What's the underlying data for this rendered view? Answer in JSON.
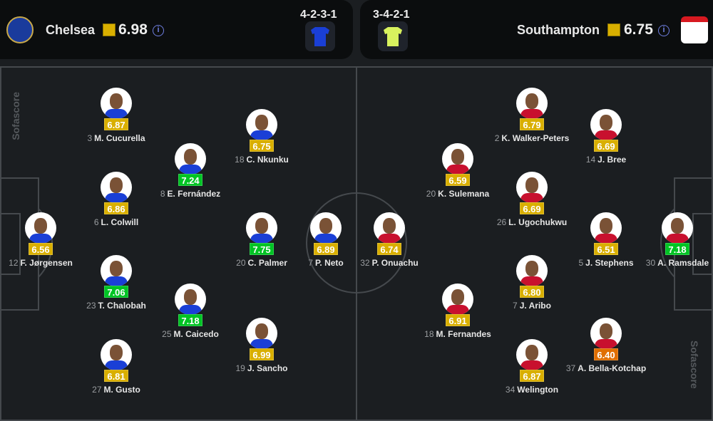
{
  "home": {
    "name": "Chelsea",
    "rating": "6.98",
    "formation": "4-2-3-1",
    "kit_color": "#1a3fd6",
    "crest": "chelsea-crest"
  },
  "away": {
    "name": "Southampton",
    "rating": "6.75",
    "formation": "3-4-2-1",
    "kit_color": "#d8f25e",
    "crest": "southampton-crest"
  },
  "watermark": "Sofascore",
  "rating_colors": {
    "yellow": "#d9af00",
    "green": "#00c424",
    "orange": "#e06e00"
  },
  "home_players": [
    {
      "number": "12",
      "name": "F. Jørgensen",
      "rating": "6.56",
      "color": "yellow"
    },
    {
      "number": "3",
      "name": "M. Cucurella",
      "rating": "6.87",
      "color": "yellow"
    },
    {
      "number": "6",
      "name": "L. Colwill",
      "rating": "6.86",
      "color": "yellow"
    },
    {
      "number": "23",
      "name": "T. Chalobah",
      "rating": "7.06",
      "color": "green"
    },
    {
      "number": "27",
      "name": "M. Gusto",
      "rating": "6.81",
      "color": "yellow"
    },
    {
      "number": "8",
      "name": "E. Fernández",
      "rating": "7.24",
      "color": "green"
    },
    {
      "number": "25",
      "name": "M. Caicedo",
      "rating": "7.18",
      "color": "green"
    },
    {
      "number": "18",
      "name": "C. Nkunku",
      "rating": "6.75",
      "color": "yellow"
    },
    {
      "number": "20",
      "name": "C. Palmer",
      "rating": "7.75",
      "color": "green"
    },
    {
      "number": "19",
      "name": "J. Sancho",
      "rating": "6.99",
      "color": "yellow"
    },
    {
      "number": "7",
      "name": "P. Neto",
      "rating": "6.89",
      "color": "yellow"
    }
  ],
  "away_players": [
    {
      "number": "32",
      "name": "P. Onuachu",
      "rating": "6.74",
      "color": "yellow"
    },
    {
      "number": "20",
      "name": "K. Sulemana",
      "rating": "6.59",
      "color": "yellow"
    },
    {
      "number": "18",
      "name": "M. Fernandes",
      "rating": "6.91",
      "color": "yellow"
    },
    {
      "number": "2",
      "name": "K. Walker-Peters",
      "rating": "6.79",
      "color": "yellow"
    },
    {
      "number": "26",
      "name": "L. Ugochukwu",
      "rating": "6.69",
      "color": "yellow"
    },
    {
      "number": "7",
      "name": "J. Aribo",
      "rating": "6.80",
      "color": "yellow"
    },
    {
      "number": "34",
      "name": "Welington",
      "rating": "6.87",
      "color": "yellow"
    },
    {
      "number": "14",
      "name": "J. Bree",
      "rating": "6.69",
      "color": "yellow"
    },
    {
      "number": "5",
      "name": "J. Stephens",
      "rating": "6.51",
      "color": "yellow"
    },
    {
      "number": "37",
      "name": "A. Bella-Kotchap",
      "rating": "6.40",
      "color": "orange"
    },
    {
      "number": "30",
      "name": "A. Ramsdale",
      "rating": "7.18",
      "color": "green"
    }
  ]
}
